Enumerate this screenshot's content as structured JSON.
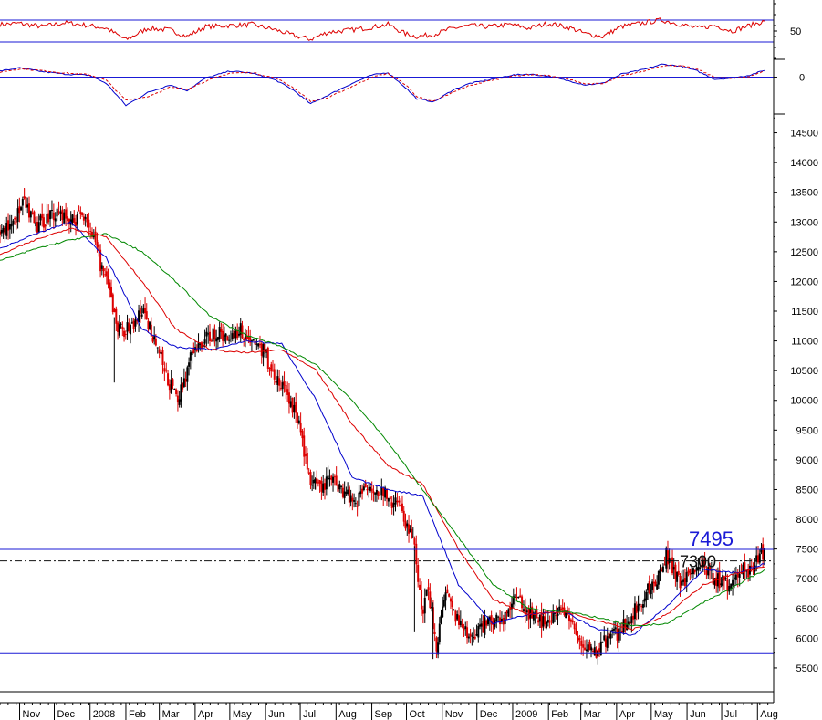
{
  "chart_data": [
    {
      "type": "line",
      "panel": "rsi",
      "ylim": [
        0,
        100
      ],
      "yticks": [
        50
      ],
      "reference_lines": [
        70,
        30
      ],
      "series": [
        {
          "color": "#dd0000",
          "x": [
            "2007-10-15",
            "2007-11-01",
            "2007-11-20",
            "2007-12-10",
            "2007-12-31",
            "2008-01-15",
            "2008-02-01",
            "2008-02-20",
            "2008-03-10",
            "2008-03-25",
            "2008-04-10",
            "2008-05-01",
            "2008-05-20",
            "2008-06-10",
            "2008-06-25",
            "2008-07-10",
            "2008-07-25",
            "2008-08-15",
            "2008-09-01",
            "2008-09-15",
            "2008-09-30",
            "2008-10-10",
            "2008-10-25",
            "2008-11-10",
            "2008-11-25",
            "2008-12-10",
            "2008-12-31",
            "2009-01-15",
            "2009-02-01",
            "2009-02-20",
            "2009-03-05",
            "2009-03-20",
            "2009-04-05",
            "2009-04-25",
            "2009-05-10",
            "2009-05-25",
            "2009-06-10",
            "2009-06-25",
            "2009-07-10",
            "2009-07-25",
            "2009-08-07"
          ],
          "values": [
            62,
            64,
            58,
            65,
            60,
            55,
            34,
            55,
            52,
            40,
            58,
            60,
            62,
            52,
            42,
            35,
            48,
            52,
            57,
            62,
            45,
            40,
            44,
            55,
            60,
            58,
            62,
            55,
            64,
            56,
            45,
            40,
            58,
            65,
            70,
            63,
            55,
            60,
            50,
            60,
            68
          ]
        }
      ]
    },
    {
      "type": "line",
      "panel": "macd",
      "yticks": [
        0
      ],
      "series": [
        {
          "color": "#0000cc",
          "x": [
            "2007-10-15",
            "2007-11-01",
            "2007-11-20",
            "2007-12-10",
            "2007-12-31",
            "2008-01-15",
            "2008-02-01",
            "2008-02-20",
            "2008-03-10",
            "2008-03-25",
            "2008-04-10",
            "2008-05-01",
            "2008-05-20",
            "2008-06-10",
            "2008-06-25",
            "2008-07-10",
            "2008-07-25",
            "2008-08-15",
            "2008-09-01",
            "2008-09-15",
            "2008-09-30",
            "2008-10-10",
            "2008-10-25",
            "2008-11-10",
            "2008-11-25",
            "2008-12-10",
            "2008-12-31",
            "2009-01-15",
            "2009-02-01",
            "2009-02-20",
            "2009-03-05",
            "2009-03-20",
            "2009-04-05",
            "2009-04-25",
            "2009-05-10",
            "2009-05-25",
            "2009-06-10",
            "2009-06-25",
            "2009-07-10",
            "2009-07-25",
            "2009-08-07"
          ],
          "values": [
            120,
            180,
            110,
            60,
            40,
            -120,
            -550,
            -300,
            -150,
            -260,
            -20,
            120,
            80,
            -60,
            -250,
            -520,
            -350,
            -120,
            40,
            90,
            -200,
            -420,
            -480,
            -250,
            -120,
            -60,
            40,
            60,
            20,
            -80,
            -150,
            -120,
            60,
            150,
            250,
            220,
            120,
            -40,
            -20,
            40,
            130
          ]
        },
        {
          "color": "#dd0000",
          "dashed": true,
          "x": [
            "2007-10-15",
            "2007-11-01",
            "2007-11-20",
            "2007-12-10",
            "2007-12-31",
            "2008-01-15",
            "2008-02-01",
            "2008-02-20",
            "2008-03-10",
            "2008-03-25",
            "2008-04-10",
            "2008-05-01",
            "2008-05-20",
            "2008-06-10",
            "2008-06-25",
            "2008-07-10",
            "2008-07-25",
            "2008-08-15",
            "2008-09-01",
            "2008-09-15",
            "2008-09-30",
            "2008-10-10",
            "2008-10-25",
            "2008-11-10",
            "2008-11-25",
            "2008-12-10",
            "2008-12-31",
            "2009-01-15",
            "2009-02-01",
            "2009-02-20",
            "2009-03-05",
            "2009-03-20",
            "2009-04-05",
            "2009-04-25",
            "2009-05-10",
            "2009-05-25",
            "2009-06-10",
            "2009-06-25",
            "2009-07-10",
            "2009-07-25",
            "2009-08-07"
          ],
          "values": [
            100,
            160,
            130,
            80,
            50,
            -60,
            -450,
            -380,
            -200,
            -230,
            -80,
            80,
            90,
            -20,
            -200,
            -470,
            -400,
            -180,
            0,
            70,
            -140,
            -380,
            -470,
            -300,
            -160,
            -80,
            20,
            50,
            30,
            -50,
            -130,
            -130,
            20,
            120,
            220,
            230,
            150,
            0,
            -30,
            20,
            110
          ]
        }
      ]
    },
    {
      "type": "candlestick",
      "panel": "price",
      "ylim": [
        5100,
        14800
      ],
      "yticks": [
        5500,
        6000,
        6500,
        7000,
        7500,
        8000,
        8500,
        9000,
        9500,
        10000,
        10500,
        11000,
        11500,
        12000,
        12500,
        13000,
        13500,
        14000,
        14500
      ],
      "xticks": [
        "Nov",
        "Dec",
        "2008",
        "Feb",
        "Mar",
        "Apr",
        "May",
        "Jun",
        "Jul",
        "Aug",
        "Sep",
        "Oct",
        "Nov",
        "Dec",
        "2009",
        "Feb",
        "Mar",
        "Apr",
        "May",
        "Jun",
        "Jul",
        "Aug"
      ],
      "xtick_dates": [
        "2007-11-01",
        "2007-12-01",
        "2008-01-01",
        "2008-02-01",
        "2008-03-01",
        "2008-04-01",
        "2008-05-01",
        "2008-06-01",
        "2008-07-01",
        "2008-08-01",
        "2008-09-01",
        "2008-10-01",
        "2008-11-01",
        "2008-12-01",
        "2009-01-01",
        "2009-02-01",
        "2009-03-01",
        "2009-04-01",
        "2009-05-01",
        "2009-06-01",
        "2009-07-01",
        "2009-08-01"
      ],
      "x_range": [
        "2007-10-15",
        "2009-08-15"
      ],
      "close": {
        "x": [
          "2007-10-15",
          "2007-10-25",
          "2007-11-05",
          "2007-11-15",
          "2007-11-26",
          "2007-12-05",
          "2007-12-14",
          "2007-12-28",
          "2008-01-10",
          "2008-01-18",
          "2008-01-25",
          "2008-02-05",
          "2008-02-15",
          "2008-02-27",
          "2008-03-07",
          "2008-03-17",
          "2008-03-28",
          "2008-04-08",
          "2008-04-18",
          "2008-04-29",
          "2008-05-09",
          "2008-05-20",
          "2008-05-30",
          "2008-06-10",
          "2008-06-20",
          "2008-06-30",
          "2008-07-10",
          "2008-07-18",
          "2008-07-28",
          "2008-08-07",
          "2008-08-18",
          "2008-08-28",
          "2008-09-08",
          "2008-09-17",
          "2008-09-26",
          "2008-10-03",
          "2008-10-08",
          "2008-10-14",
          "2008-10-20",
          "2008-10-27",
          "2008-11-04",
          "2008-11-14",
          "2008-11-24",
          "2008-12-05",
          "2008-12-15",
          "2008-12-24",
          "2009-01-06",
          "2009-01-15",
          "2009-01-26",
          "2009-02-05",
          "2009-02-16",
          "2009-02-25",
          "2009-03-06",
          "2009-03-13",
          "2009-03-24",
          "2009-04-03",
          "2009-04-14",
          "2009-04-24",
          "2009-05-06",
          "2009-05-14",
          "2009-05-26",
          "2009-06-05",
          "2009-06-15",
          "2009-06-25",
          "2009-07-06",
          "2009-07-15",
          "2009-07-24",
          "2009-08-03",
          "2009-08-07"
        ],
        "values": [
          12800,
          13000,
          13300,
          12900,
          13100,
          13200,
          13000,
          13150,
          12300,
          11800,
          11200,
          11200,
          11500,
          11000,
          10400,
          10000,
          10700,
          11000,
          11150,
          11050,
          11200,
          11000,
          10850,
          10350,
          10100,
          9600,
          8600,
          8500,
          8700,
          8500,
          8300,
          8600,
          8500,
          8300,
          8200,
          7800,
          7600,
          6400,
          6800,
          5900,
          6700,
          6300,
          6000,
          6200,
          6300,
          6350,
          6700,
          6400,
          6300,
          6400,
          6450,
          6000,
          5850,
          5750,
          6000,
          6100,
          6400,
          6700,
          7000,
          7400,
          6900,
          7150,
          7200,
          7000,
          6900,
          7100,
          7150,
          7350,
          7495
        ]
      },
      "moving_averages": [
        {
          "color": "#0000cc",
          "x": [
            "2007-10-15",
            "2007-11-15",
            "2007-12-15",
            "2008-01-15",
            "2008-02-15",
            "2008-03-15",
            "2008-04-15",
            "2008-05-15",
            "2008-06-15",
            "2008-07-15",
            "2008-08-15",
            "2008-09-15",
            "2008-10-15",
            "2008-11-15",
            "2008-12-15",
            "2009-01-15",
            "2009-02-15",
            "2009-03-15",
            "2009-04-15",
            "2009-05-15",
            "2009-06-15",
            "2009-07-15",
            "2009-08-07"
          ],
          "values": [
            12550,
            12800,
            13000,
            12400,
            11200,
            10900,
            10850,
            11000,
            10950,
            10000,
            8700,
            8500,
            8400,
            6900,
            6250,
            6400,
            6450,
            6150,
            6050,
            6550,
            7150,
            7100,
            7250
          ]
        },
        {
          "color": "#dd0000",
          "x": [
            "2007-10-15",
            "2007-11-15",
            "2007-12-15",
            "2008-01-15",
            "2008-02-15",
            "2008-03-15",
            "2008-04-15",
            "2008-05-15",
            "2008-06-15",
            "2008-07-15",
            "2008-08-15",
            "2008-09-15",
            "2008-10-15",
            "2008-11-15",
            "2008-12-15",
            "2009-01-15",
            "2009-02-15",
            "2009-03-15",
            "2009-04-15",
            "2009-05-15",
            "2009-06-15",
            "2009-07-15",
            "2009-08-07"
          ],
          "values": [
            12450,
            12700,
            12900,
            12750,
            12000,
            11200,
            10850,
            10800,
            10850,
            10500,
            9600,
            8900,
            8600,
            7500,
            6650,
            6400,
            6450,
            6300,
            6150,
            6400,
            6900,
            7100,
            7200
          ]
        },
        {
          "color": "#008800",
          "x": [
            "2007-10-15",
            "2007-11-15",
            "2007-12-15",
            "2008-01-15",
            "2008-02-15",
            "2008-03-15",
            "2008-04-15",
            "2008-05-15",
            "2008-06-15",
            "2008-07-15",
            "2008-08-15",
            "2008-09-15",
            "2008-10-15",
            "2008-11-15",
            "2008-12-15",
            "2009-01-15",
            "2009-02-15",
            "2009-03-15",
            "2009-04-15",
            "2009-05-15",
            "2009-06-15",
            "2009-07-15",
            "2009-08-07"
          ],
          "values": [
            12350,
            12550,
            12700,
            12800,
            12500,
            12000,
            11400,
            11100,
            10900,
            10600,
            10000,
            9300,
            8500,
            7700,
            6900,
            6500,
            6450,
            6350,
            6200,
            6250,
            6600,
            6900,
            7150
          ]
        }
      ],
      "horizontal_lines": [
        {
          "value": 7495,
          "color": "#1a1ad6",
          "style": "solid"
        },
        {
          "value": 7300,
          "color": "#111111",
          "style": "dashdot"
        },
        {
          "value": 5740,
          "color": "#1a1ad6",
          "style": "solid"
        }
      ],
      "annotations": [
        "7495",
        "7300"
      ]
    }
  ]
}
